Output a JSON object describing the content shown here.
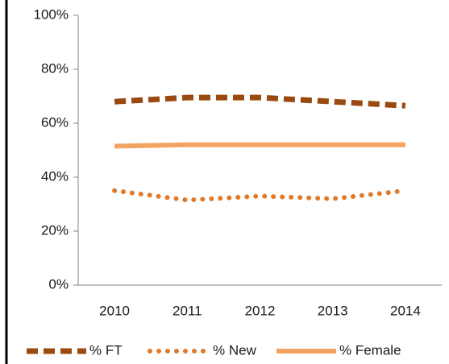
{
  "chart_data": {
    "type": "line",
    "categories": [
      "2010",
      "2011",
      "2012",
      "2013",
      "2014"
    ],
    "series": [
      {
        "name": "% FT",
        "color": "#9a4a10",
        "style": "dashed",
        "values": [
          68,
          69.5,
          69.5,
          68,
          66.5
        ]
      },
      {
        "name": "% New",
        "color": "#e07a2a",
        "style": "dotted",
        "values": [
          35,
          31.5,
          33,
          32,
          35
        ]
      },
      {
        "name": "% Female",
        "color": "#f4a462",
        "style": "solid",
        "values": [
          51.5,
          52,
          52,
          52,
          52
        ]
      }
    ],
    "ylim": [
      0,
      100
    ],
    "yticks": [
      {
        "value": 0,
        "label": "0%"
      },
      {
        "value": 20,
        "label": "20%"
      },
      {
        "value": 40,
        "label": "40%"
      },
      {
        "value": 60,
        "label": "60%"
      },
      {
        "value": 80,
        "label": "80%"
      },
      {
        "value": 100,
        "label": "100%"
      }
    ],
    "grid": false,
    "legend": "bottom"
  }
}
